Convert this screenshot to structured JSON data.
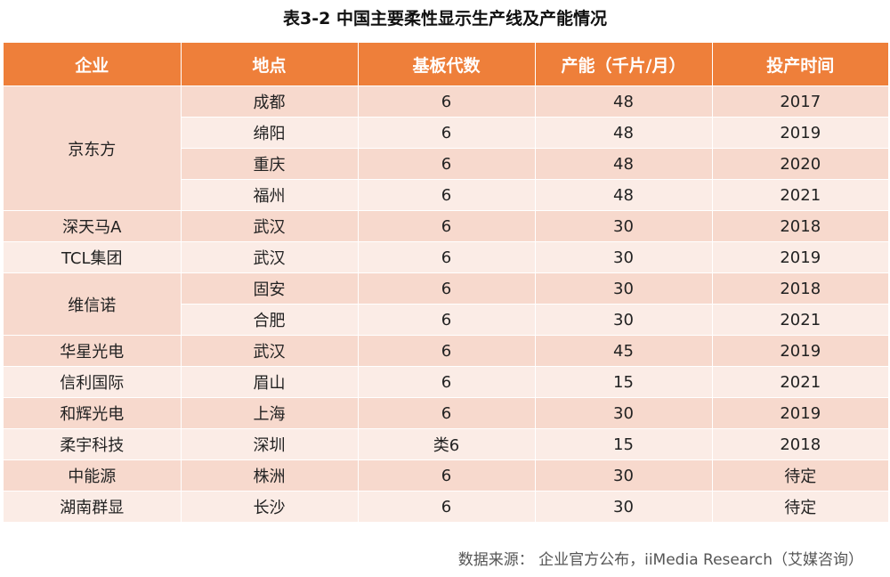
{
  "title": "表3-2 中国主要柔性显示生产线及产能情况",
  "headers": [
    "企业",
    "地点",
    "基板代数",
    "产能（千片/月）",
    "投产时间"
  ],
  "groups": [
    {
      "company": "京东方",
      "rows": [
        {
          "location": "成都",
          "generation": "6",
          "capacity": "48",
          "year": "2017"
        },
        {
          "location": "绵阳",
          "generation": "6",
          "capacity": "48",
          "year": "2019"
        },
        {
          "location": "重庆",
          "generation": "6",
          "capacity": "48",
          "year": "2020"
        },
        {
          "location": "福州",
          "generation": "6",
          "capacity": "48",
          "year": "2021"
        }
      ]
    },
    {
      "company": "深天马A",
      "rows": [
        {
          "location": "武汉",
          "generation": "6",
          "capacity": "30",
          "year": "2018"
        }
      ]
    },
    {
      "company": "TCL集团",
      "rows": [
        {
          "location": "武汉",
          "generation": "6",
          "capacity": "30",
          "year": "2019"
        }
      ]
    },
    {
      "company": "维信诺",
      "rows": [
        {
          "location": "固安",
          "generation": "6",
          "capacity": "30",
          "year": "2018"
        },
        {
          "location": "合肥",
          "generation": "6",
          "capacity": "30",
          "year": "2021"
        }
      ]
    },
    {
      "company": "华星光电",
      "rows": [
        {
          "location": "武汉",
          "generation": "6",
          "capacity": "45",
          "year": "2019"
        }
      ]
    },
    {
      "company": "信利国际",
      "rows": [
        {
          "location": "眉山",
          "generation": "6",
          "capacity": "15",
          "year": "2021"
        }
      ]
    },
    {
      "company": "和辉光电",
      "rows": [
        {
          "location": "上海",
          "generation": "6",
          "capacity": "30",
          "year": "2019"
        }
      ]
    },
    {
      "company": "柔宇科技",
      "rows": [
        {
          "location": "深圳",
          "generation": "类6",
          "capacity": "15",
          "year": "2018"
        }
      ]
    },
    {
      "company": "中能源",
      "rows": [
        {
          "location": "株洲",
          "generation": "6",
          "capacity": "30",
          "year": "待定"
        }
      ]
    },
    {
      "company": "湖南群显",
      "rows": [
        {
          "location": "长沙",
          "generation": "6",
          "capacity": "30",
          "year": "待定"
        }
      ]
    }
  ],
  "source": "数据来源： 企业官方公布，iiMedia Research（艾媒咨询）",
  "colors": {
    "header": "#ee7f3a",
    "row_dark": "#f7d9cd",
    "row_light": "#fbece6"
  }
}
